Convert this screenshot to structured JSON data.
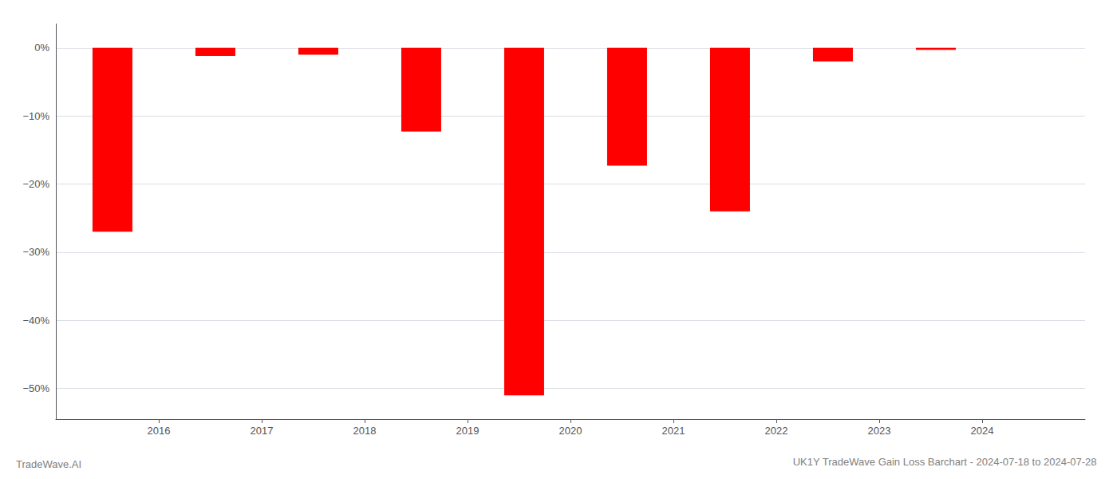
{
  "chart_data": {
    "type": "bar",
    "title": "UK1Y TradeWave Gain Loss Barchart - 2024-07-18 to 2024-07-28",
    "annotations": [
      "TradeWave.AI"
    ],
    "x": [
      2015.55,
      2016.55,
      2017.55,
      2018.55,
      2019.55,
      2020.55,
      2021.55,
      2022.55,
      2023.55
    ],
    "values": [
      -0.27,
      -0.012,
      -0.01,
      -0.123,
      -0.51,
      -0.173,
      -0.24,
      -0.02,
      -0.003
    ],
    "color": "#ff0000",
    "xlim": [
      2015.0,
      2025.0
    ],
    "xticks": [
      2016,
      2017,
      2018,
      2019,
      2020,
      2021,
      2022,
      2023,
      2024
    ],
    "ylim": [
      -0.545,
      0.035
    ],
    "yticks": [
      {
        "value": 0.0,
        "label": "0%"
      },
      {
        "value": -0.1,
        "label": "−10%"
      },
      {
        "value": -0.2,
        "label": "−20%"
      },
      {
        "value": -0.3,
        "label": "−30%"
      },
      {
        "value": -0.4,
        "label": "−40%"
      },
      {
        "value": -0.5,
        "label": "−50%"
      }
    ],
    "grid": true
  }
}
